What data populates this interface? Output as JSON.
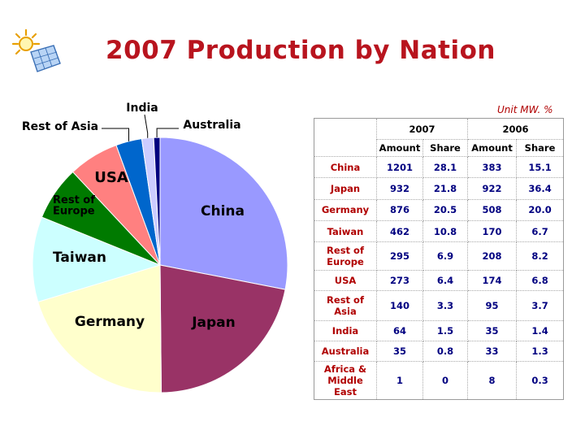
{
  "title": "2007 Production by Nation",
  "unit_note": "Unit MW. %",
  "icons": {
    "logo": "sun-solar-panel-icon"
  },
  "colors": {
    "title": "#b8141e",
    "nation_text": "#b00000",
    "value_text": "#000080"
  },
  "chart_data": [
    {
      "type": "pie",
      "title": "",
      "slices": [
        {
          "label": "China",
          "value": 28.1,
          "color": "#9999ff"
        },
        {
          "label": "Japan",
          "value": 21.8,
          "color": "#993366"
        },
        {
          "label": "Germany",
          "value": 20.5,
          "color": "#ffffcc"
        },
        {
          "label": "Taiwan",
          "value": 10.8,
          "color": "#ccffff"
        },
        {
          "label": "Rest of\nEurope",
          "value": 6.9,
          "color": "#007a00"
        },
        {
          "label": "USA",
          "value": 6.4,
          "color": "#ff8080"
        },
        {
          "label": "Rest of Asia",
          "value": 3.3,
          "color": "#0066cc"
        },
        {
          "label": "India",
          "value": 1.5,
          "color": "#ccccff"
        },
        {
          "label": "Australia",
          "value": 0.8,
          "color": "#000080"
        },
        {
          "label": "",
          "value": 0.0,
          "color": "#ffffff"
        }
      ]
    },
    {
      "type": "table",
      "header_years": [
        "2007",
        "2006"
      ],
      "subheaders": [
        "Amount",
        "Share",
        "Amount",
        "Share"
      ],
      "rows": [
        {
          "nation": "China",
          "values": [
            "1201",
            "28.1",
            "383",
            "15.1"
          ]
        },
        {
          "nation": "Japan",
          "values": [
            "932",
            "21.8",
            "922",
            "36.4"
          ]
        },
        {
          "nation": "Germany",
          "values": [
            "876",
            "20.5",
            "508",
            "20.0"
          ]
        },
        {
          "nation": "Taiwan",
          "values": [
            "462",
            "10.8",
            "170",
            "6.7"
          ]
        },
        {
          "nation": "Rest of\nEurope",
          "values": [
            "295",
            "6.9",
            "208",
            "8.2"
          ]
        },
        {
          "nation": "USA",
          "values": [
            "273",
            "6.4",
            "174",
            "6.8"
          ]
        },
        {
          "nation": "Rest of\nAsia",
          "values": [
            "140",
            "3.3",
            "95",
            "3.7"
          ]
        },
        {
          "nation": "India",
          "values": [
            "64",
            "1.5",
            "35",
            "1.4"
          ]
        },
        {
          "nation": "Australia",
          "values": [
            "35",
            "0.8",
            "33",
            "1.3"
          ]
        },
        {
          "nation": "Africa &\nMiddle\nEast",
          "values": [
            "1",
            "0",
            "8",
            "0.3"
          ]
        }
      ]
    }
  ]
}
